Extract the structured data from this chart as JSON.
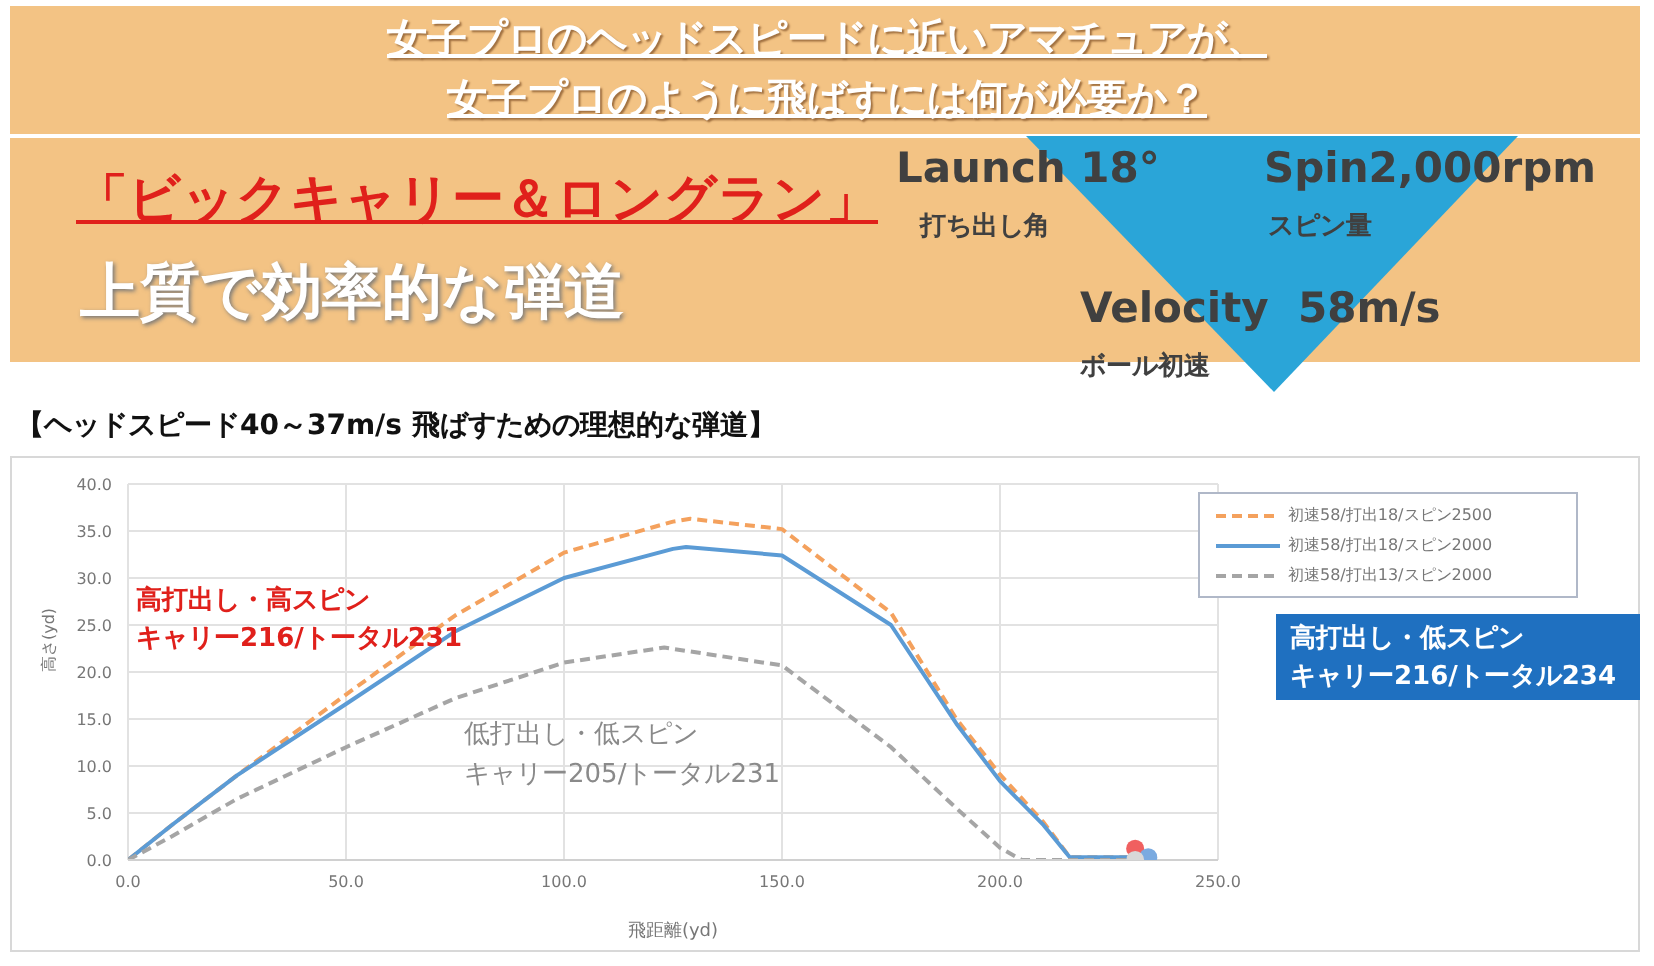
{
  "chart_data": {
    "type": "line",
    "title": "女子プロのヘッドスピードに近いアマチュアが、",
    "subtitle": "女子プロのように飛ばすには何が必要か？",
    "xlabel": "飛距離(yd)",
    "ylabel": "高さ(yd)",
    "xlim": [
      0,
      250
    ],
    "xticks": [
      {
        "value": 0,
        "label": "0.0"
      },
      {
        "value": 50,
        "label": "50.0"
      },
      {
        "value": 100,
        "label": "100.0"
      },
      {
        "value": 150,
        "label": "150.0"
      },
      {
        "value": 200,
        "label": "200.0"
      },
      {
        "value": 250,
        "label": "250.0"
      }
    ],
    "ylim": [
      0,
      40
    ],
    "yticks": [
      {
        "value": 0,
        "label": "0.0"
      },
      {
        "value": 5,
        "label": "5.0"
      },
      {
        "value": 10,
        "label": "10.0"
      },
      {
        "value": 15,
        "label": "15.0"
      },
      {
        "value": 20,
        "label": "20.0"
      },
      {
        "value": 25,
        "label": "25.0"
      },
      {
        "value": 30,
        "label": "30.0"
      },
      {
        "value": 35,
        "label": "35.0"
      },
      {
        "value": 40,
        "label": "40.0"
      }
    ],
    "grid": true,
    "legend": "top right",
    "series": [
      {
        "name": "初速58/打出18/スピン2500",
        "color": "#f4a15d",
        "line_style": "dashed",
        "x": [
          0,
          10,
          25,
          50,
          75,
          100,
          125,
          129,
          150,
          175,
          190,
          200,
          210,
          216,
          231
        ],
        "values": [
          0,
          3.7,
          9,
          17.6,
          26,
          32.7,
          36,
          36.3,
          35.2,
          26.3,
          15,
          9.1,
          4,
          0.3,
          0.3
        ]
      },
      {
        "name": "初速58/打出18/スピン2000",
        "color": "#5b9bd5",
        "line_style": "solid",
        "x": [
          0,
          10,
          25,
          50,
          75,
          100,
          125,
          128,
          150,
          175,
          190,
          200,
          210,
          216,
          234
        ],
        "values": [
          0,
          3.7,
          9,
          16.6,
          24.3,
          30,
          33.1,
          33.3,
          32.4,
          25,
          14.5,
          8.4,
          3.7,
          0.3,
          0.3
        ]
      },
      {
        "name": "初速58/打出13/スピン2000",
        "color": "#a5a5a5",
        "line_style": "dashed",
        "x": [
          0,
          10,
          25,
          50,
          75,
          100,
          123,
          150,
          175,
          190,
          200,
          205,
          231
        ],
        "values": [
          0,
          2.5,
          6.5,
          12,
          17.2,
          21,
          22.6,
          20.7,
          12,
          5.5,
          1.3,
          0,
          0
        ]
      },
      {
        "type": "scatter",
        "marker": "circle",
        "x": [
          231,
          234,
          231
        ],
        "values": [
          1.2,
          0.3,
          0
        ],
        "colors": [
          "#f06060",
          "#7aaae0",
          "#d8d8d8"
        ]
      }
    ],
    "annotations": [
      "「ビックキャリー＆ロングラン」",
      "上質で効率的な弾道",
      "Launch 18°",
      "打ち出し角",
      "Spin2,000rpm",
      "スピン量",
      "Velocity  58m/s",
      "ボール初速",
      "【ヘッドスピード40～37m/s 飛ばすための理想的な弾道】",
      "高打出し・高スピン",
      "キャリー216/トータル231",
      "低打出し・低スピン",
      "キャリー205/トータル231",
      "高打出し・低スピン",
      "キャリー216/トータル234"
    ]
  }
}
